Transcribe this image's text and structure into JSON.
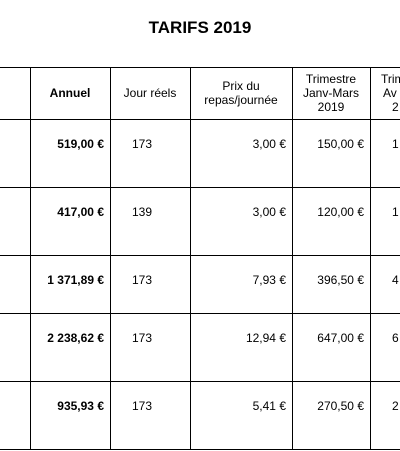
{
  "header": {
    "title": "TARIFS 2019"
  },
  "table": {
    "columns": [
      [],
      [
        "Annuel"
      ],
      [
        "Jour réels"
      ],
      [
        "Prix du",
        "repas/journée"
      ],
      [
        "Trimestre",
        "Janv-Mars",
        "2019"
      ],
      [
        "Trim",
        "Av",
        "2"
      ]
    ],
    "rows": [
      [
        "",
        "519,00 €",
        "173",
        "3,00 €",
        "150,00 €",
        "1"
      ],
      [
        "",
        "417,00 €",
        "139",
        "3,00 €",
        "120,00 €",
        "1"
      ],
      [
        "",
        "1 371,89 €",
        "173",
        "7,93 €",
        "396,50 €",
        "4"
      ],
      [
        "",
        "2 238,62 €",
        "173",
        "12,94 €",
        "647,00 €",
        "6"
      ],
      [
        "",
        "935,93 €",
        "173",
        "5,41 €",
        "270,50 €",
        "2"
      ]
    ]
  }
}
